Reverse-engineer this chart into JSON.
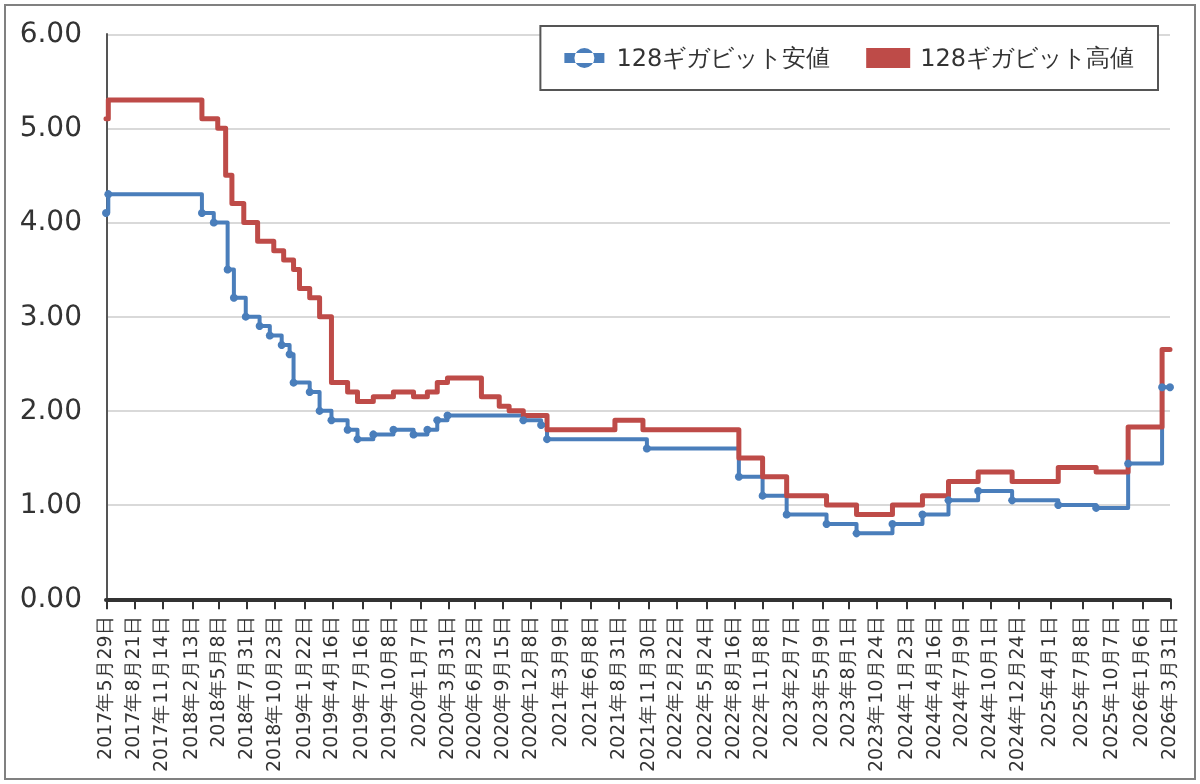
{
  "chart_data": {
    "type": "step",
    "xlim": [
      "2017-05-29",
      "2026-03-31"
    ],
    "xticks": [
      {
        "value": "2017-05-29",
        "label": "2017年5月29日"
      },
      {
        "value": "2017-08-21",
        "label": "2017年8月21日"
      },
      {
        "value": "2017-11-14",
        "label": "2017年11月14日"
      },
      {
        "value": "2018-02-13",
        "label": "2018年2月13日"
      },
      {
        "value": "2018-05-08",
        "label": "2018年5月8日"
      },
      {
        "value": "2018-07-31",
        "label": "2018年7月31日"
      },
      {
        "value": "2018-10-23",
        "label": "2018年10月23日"
      },
      {
        "value": "2019-01-22",
        "label": "2019年1月22日"
      },
      {
        "value": "2019-04-16",
        "label": "2019年4月16日"
      },
      {
        "value": "2019-07-16",
        "label": "2019年7月16日"
      },
      {
        "value": "2019-10-08",
        "label": "2019年10月8日"
      },
      {
        "value": "2020-01-07",
        "label": "2020年1月7日"
      },
      {
        "value": "2020-03-31",
        "label": "2020年3月31日"
      },
      {
        "value": "2020-06-23",
        "label": "2020年6月23日"
      },
      {
        "value": "2020-09-15",
        "label": "2020年9月15日"
      },
      {
        "value": "2020-12-08",
        "label": "2020年12月8日"
      },
      {
        "value": "2021-03-09",
        "label": "2021年3月9日"
      },
      {
        "value": "2021-06-08",
        "label": "2021年6月8日"
      },
      {
        "value": "2021-08-31",
        "label": "2021年8月31日"
      },
      {
        "value": "2021-11-30",
        "label": "2021年11月30日"
      },
      {
        "value": "2022-02-22",
        "label": "2022年2月22日"
      },
      {
        "value": "2022-05-24",
        "label": "2022年5月24日"
      },
      {
        "value": "2022-08-16",
        "label": "2022年8月16日"
      },
      {
        "value": "2022-11-08",
        "label": "2022年11月8日"
      },
      {
        "value": "2023-02-07",
        "label": "2023年2月7日"
      },
      {
        "value": "2023-05-09",
        "label": "2023年5月9日"
      },
      {
        "value": "2023-08-01",
        "label": "2023年8月1日"
      },
      {
        "value": "2023-10-24",
        "label": "2023年10月24日"
      },
      {
        "value": "2024-01-23",
        "label": "2024年1月23日"
      },
      {
        "value": "2024-04-16",
        "label": "2024年4月16日"
      },
      {
        "value": "2024-07-09",
        "label": "2024年7月9日"
      },
      {
        "value": "2024-10-01",
        "label": "2024年10月1日"
      },
      {
        "value": "2024-12-24",
        "label": "2024年12月24日"
      },
      {
        "value": "2025-04-01",
        "label": "2025年4月1日"
      },
      {
        "value": "2025-07-08",
        "label": "2025年7月8日"
      },
      {
        "value": "2025-10-07",
        "label": "2025年10月7日"
      },
      {
        "value": "2026-01-06",
        "label": "2026年1月6日"
      },
      {
        "value": "2026-03-31",
        "label": "2026年3月31日"
      }
    ],
    "ylim": [
      0,
      6
    ],
    "yticks": [
      {
        "value": 0,
        "label": "0.00"
      },
      {
        "value": 1,
        "label": "1.00"
      },
      {
        "value": 2,
        "label": "2.00"
      },
      {
        "value": 3,
        "label": "3.00"
      },
      {
        "value": 4,
        "label": "4.00"
      },
      {
        "value": 5,
        "label": "5.00"
      },
      {
        "value": 6,
        "label": "6.00"
      }
    ],
    "grid": "y",
    "legend": "top right",
    "line_style": "solid",
    "series": [
      {
        "name": "128ギガビット安値",
        "color": "#4a7ebb",
        "marker": "circle",
        "x": [
          "2017-05-29",
          "2017-06-05",
          "2018-03-16",
          "2018-04-21",
          "2018-06-02",
          "2018-06-21",
          "2018-07-27",
          "2018-09-07",
          "2018-10-08",
          "2018-11-13",
          "2018-12-07",
          "2018-12-19",
          "2019-02-06",
          "2019-03-08",
          "2019-04-13",
          "2019-06-01",
          "2019-07-01",
          "2019-08-18",
          "2019-10-18",
          "2019-12-18",
          "2020-01-29",
          "2020-02-28",
          "2020-03-30",
          "2020-11-15",
          "2021-01-08",
          "2021-01-26",
          "2021-11-25",
          "2022-08-31",
          "2022-11-11",
          "2023-01-23",
          "2023-05-24",
          "2023-08-23",
          "2023-12-10",
          "2024-03-10",
          "2024-05-28",
          "2024-08-26",
          "2024-12-07",
          "2025-04-26",
          "2025-08-19",
          "2025-11-24",
          "2026-03-07",
          "2026-03-31"
        ],
        "values": [
          4.1,
          4.3,
          4.1,
          4.0,
          3.5,
          3.2,
          3.0,
          2.9,
          2.8,
          2.7,
          2.6,
          2.3,
          2.2,
          2.0,
          1.9,
          1.8,
          1.7,
          1.75,
          1.8,
          1.75,
          1.8,
          1.9,
          1.95,
          1.9,
          1.85,
          1.7,
          1.6,
          1.3,
          1.1,
          0.9,
          0.8,
          0.7,
          0.8,
          0.9,
          1.05,
          1.15,
          1.05,
          1.0,
          0.97,
          1.44,
          2.25,
          2.25
        ]
      },
      {
        "name": "128ギガビット高値",
        "color": "#be4b48",
        "marker": "none",
        "x": [
          "2017-05-29",
          "2017-06-05",
          "2018-03-16",
          "2018-05-03",
          "2018-05-27",
          "2018-06-15",
          "2018-07-21",
          "2018-09-01",
          "2018-10-20",
          "2018-11-19",
          "2018-12-19",
          "2019-01-06",
          "2019-02-06",
          "2019-03-08",
          "2019-04-13",
          "2019-06-01",
          "2019-07-01",
          "2019-08-18",
          "2019-10-18",
          "2019-12-18",
          "2020-01-29",
          "2020-02-28",
          "2020-03-30",
          "2020-07-11",
          "2020-09-03",
          "2020-10-03",
          "2020-11-15",
          "2021-01-26",
          "2021-08-20",
          "2021-11-13",
          "2022-08-31",
          "2022-11-11",
          "2023-01-23",
          "2023-05-24",
          "2023-08-23",
          "2023-12-10",
          "2024-03-10",
          "2024-05-28",
          "2024-08-26",
          "2024-12-07",
          "2025-04-26",
          "2025-08-19",
          "2025-11-24",
          "2026-03-07",
          "2026-03-31"
        ],
        "values": [
          5.1,
          5.3,
          5.1,
          5.0,
          4.5,
          4.2,
          4.0,
          3.8,
          3.7,
          3.6,
          3.5,
          3.3,
          3.2,
          3.0,
          2.3,
          2.2,
          2.1,
          2.15,
          2.2,
          2.15,
          2.2,
          2.3,
          2.35,
          2.15,
          2.05,
          2.0,
          1.95,
          1.8,
          1.9,
          1.8,
          1.5,
          1.3,
          1.1,
          1.0,
          0.9,
          1.0,
          1.1,
          1.25,
          1.35,
          1.25,
          1.4,
          1.35,
          1.83,
          2.65,
          2.65
        ]
      }
    ]
  }
}
